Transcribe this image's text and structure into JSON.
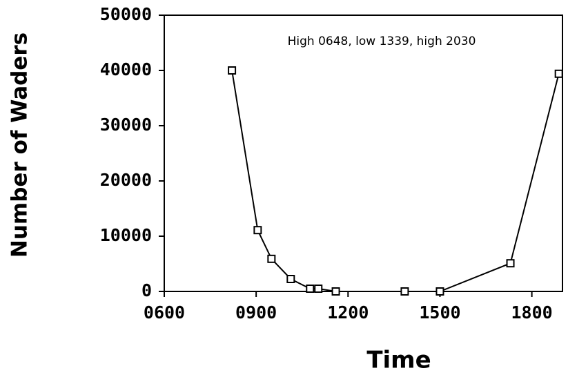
{
  "chart_data": {
    "type": "line",
    "annotation": "High 0648, low 1339, high 2030",
    "xlabel": "Time",
    "ylabel": "Number of Waders",
    "x": [
      8.21,
      9.05,
      9.5,
      10.13,
      10.76,
      11.03,
      11.6,
      13.85,
      15.0,
      17.3,
      18.88
    ],
    "values": [
      40000,
      11100,
      5900,
      2250,
      500,
      500,
      0,
      0,
      0,
      5100,
      39400
    ],
    "color": "#000000",
    "xlim": [
      6,
      19
    ],
    "xticks": [
      {
        "value": 6,
        "label": "0600"
      },
      {
        "value": 9,
        "label": "0900"
      },
      {
        "value": 12,
        "label": "1200"
      },
      {
        "value": 15,
        "label": "1500"
      },
      {
        "value": 18,
        "label": "1800"
      }
    ],
    "ylim": [
      0,
      50000
    ],
    "yticks": [
      0,
      10000,
      20000,
      30000,
      40000,
      50000
    ],
    "grid": false
  }
}
